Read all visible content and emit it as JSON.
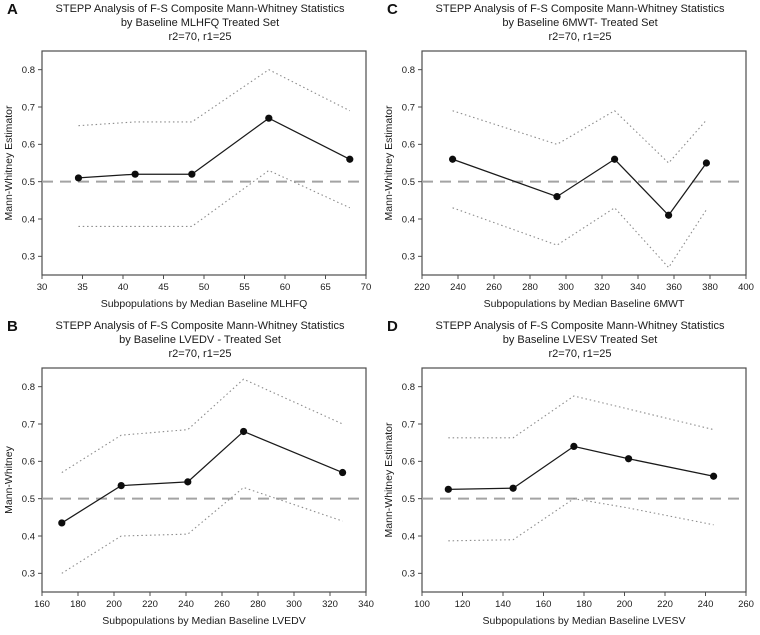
{
  "figure_name": "STEPP Analysis figure, four panels",
  "colors": {
    "background": "#ffffff",
    "estimate_line": "#1a1a1a",
    "marker": "#0d0d0d",
    "confidence_band": "#8c8c8c",
    "reference_line": "#a3a3a3",
    "frame": "#4d4d4d",
    "text": "#1a1a1a"
  },
  "chart_data": [
    {
      "panel_letter": "A",
      "type": "line",
      "title_lines": [
        "STEPP Analysis of F-S Composite Mann-Whitney Statistics",
        "by Baseline MLHFQ Treated Set",
        "r2=70, r1=25"
      ],
      "xlabel": "Subpopulations by Median Baseline MLHFQ",
      "ylabel": "Mann-Whitney Estimator",
      "x": [
        34.5,
        41.5,
        48.5,
        58,
        68
      ],
      "series": [
        {
          "name": "Mann-Whitney estimate",
          "style": "solid_markers",
          "values": [
            0.51,
            0.52,
            0.52,
            0.67,
            0.56
          ]
        },
        {
          "name": "upper confidence band",
          "style": "dotted",
          "values": [
            0.65,
            0.66,
            0.66,
            0.8,
            0.69
          ]
        },
        {
          "name": "lower confidence band",
          "style": "dotted",
          "values": [
            0.38,
            0.38,
            0.38,
            0.53,
            0.43
          ]
        }
      ],
      "reference_line": 0.5,
      "xlim": [
        30,
        70
      ],
      "ylim": [
        0.25,
        0.85
      ],
      "x_ticks": [
        30,
        35,
        40,
        45,
        50,
        55,
        60,
        65,
        70
      ],
      "y_ticks": [
        0.3,
        0.4,
        0.5,
        0.6,
        0.7,
        0.8
      ],
      "grid": false,
      "legend": "none"
    },
    {
      "panel_letter": "C",
      "type": "line",
      "title_lines": [
        "STEPP Analysis of F-S Composite Mann-Whitney Statistics",
        "by Baseline 6MWT- Treated Set",
        "r2=70, r1=25"
      ],
      "xlabel": "Subpopulations by Median Baseline 6MWT",
      "ylabel": "Mann-Whitney Estimator",
      "x": [
        237,
        295,
        327,
        357,
        378
      ],
      "series": [
        {
          "name": "Mann-Whitney estimate",
          "style": "solid_markers",
          "values": [
            0.56,
            0.46,
            0.56,
            0.41,
            0.55
          ]
        },
        {
          "name": "upper confidence band",
          "style": "dotted",
          "values": [
            0.69,
            0.6,
            0.69,
            0.55,
            0.665
          ]
        },
        {
          "name": "lower confidence band",
          "style": "dotted",
          "values": [
            0.43,
            0.33,
            0.43,
            0.27,
            0.425
          ]
        }
      ],
      "reference_line": 0.5,
      "xlim": [
        220,
        400
      ],
      "ylim": [
        0.25,
        0.85
      ],
      "x_ticks": [
        220,
        240,
        260,
        280,
        300,
        320,
        340,
        360,
        380,
        400
      ],
      "y_ticks": [
        0.3,
        0.4,
        0.5,
        0.6,
        0.7,
        0.8
      ],
      "grid": false,
      "legend": "none"
    },
    {
      "panel_letter": "B",
      "type": "line",
      "title_lines": [
        "STEPP Analysis of F-S Composite Mann-Whitney Statistics",
        "by Baseline LVEDV - Treated Set",
        "r2=70, r1=25"
      ],
      "xlabel": "Subpopulations by Median Baseline LVEDV",
      "ylabel": "Mann-Whitney",
      "x": [
        171,
        204,
        241,
        272,
        327
      ],
      "series": [
        {
          "name": "Mann-Whitney estimate",
          "style": "solid_markers",
          "values": [
            0.435,
            0.535,
            0.545,
            0.68,
            0.57
          ]
        },
        {
          "name": "upper confidence band",
          "style": "dotted",
          "values": [
            0.57,
            0.67,
            0.685,
            0.82,
            0.7
          ]
        },
        {
          "name": "lower confidence band",
          "style": "dotted",
          "values": [
            0.3,
            0.4,
            0.405,
            0.53,
            0.44
          ]
        }
      ],
      "reference_line": 0.5,
      "xlim": [
        160,
        340
      ],
      "ylim": [
        0.25,
        0.85
      ],
      "x_ticks": [
        160,
        180,
        200,
        220,
        240,
        260,
        280,
        300,
        320,
        340
      ],
      "y_ticks": [
        0.3,
        0.4,
        0.5,
        0.6,
        0.7,
        0.8
      ],
      "grid": false,
      "legend": "none"
    },
    {
      "panel_letter": "D",
      "type": "line",
      "title_lines": [
        "STEPP Analysis of F-S Composite Mann-Whitney Statistics",
        "by Baseline LVESV Treated Set",
        "r2=70, r1=25"
      ],
      "xlabel": "Subpopulations by Median Baseline LVESV",
      "ylabel": "Mann-Whitney Estimator",
      "x": [
        113,
        145,
        175,
        202,
        244
      ],
      "series": [
        {
          "name": "Mann-Whitney estimate",
          "style": "solid_markers",
          "values": [
            0.525,
            0.528,
            0.64,
            0.607,
            0.56
          ]
        },
        {
          "name": "upper confidence band",
          "style": "dotted",
          "values": [
            0.663,
            0.663,
            0.775,
            0.74,
            0.685
          ]
        },
        {
          "name": "lower confidence band",
          "style": "dotted",
          "values": [
            0.387,
            0.39,
            0.5,
            0.475,
            0.43
          ]
        }
      ],
      "reference_line": 0.5,
      "xlim": [
        100,
        260
      ],
      "ylim": [
        0.25,
        0.85
      ],
      "x_ticks": [
        100,
        120,
        140,
        160,
        180,
        200,
        220,
        240,
        260
      ],
      "y_ticks": [
        0.3,
        0.4,
        0.5,
        0.6,
        0.7,
        0.8
      ],
      "grid": false,
      "legend": "none"
    }
  ]
}
